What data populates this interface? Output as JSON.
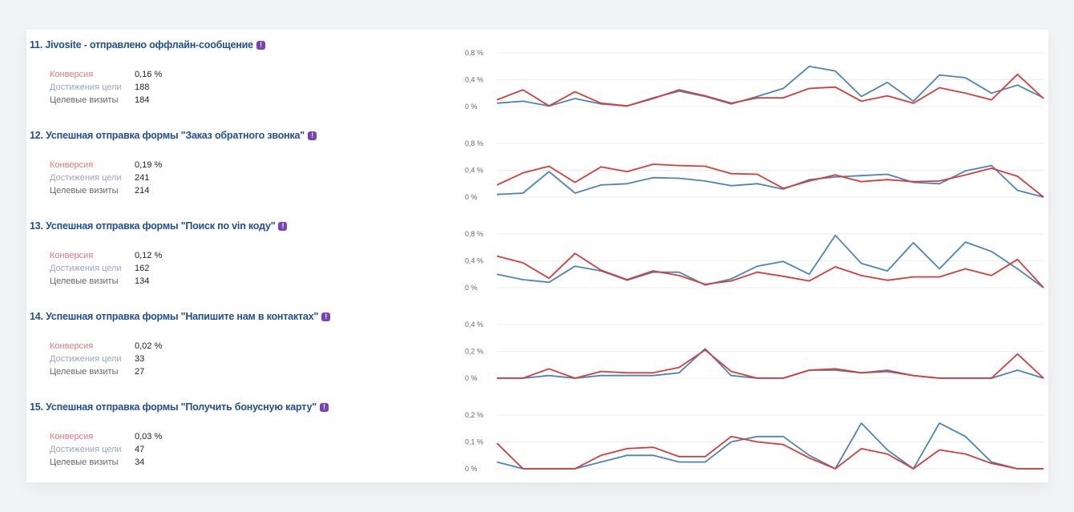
{
  "colors": {
    "conversion": "#d93b3b",
    "reaches": "#4a86b5",
    "title": "#1f4e94",
    "badge": "#7b3fb8"
  },
  "labels": {
    "conversion": "Конверсия",
    "reaches": "Достижения цели",
    "visits": "Целевые визиты"
  },
  "goals": [
    {
      "number": "11.",
      "title": "Jivosite - отправлено оффлайн-сообщение",
      "badge": "!",
      "conversion": "0,16 %",
      "reaches": "188",
      "visits": "184",
      "chart_data": {
        "type": "line",
        "y_ticks": [
          "0,8 %",
          "0,4 %",
          "0 %"
        ],
        "ymax": 0.8,
        "series": [
          {
            "color": "red",
            "values": [
              0.1,
              0.25,
              0.01,
              0.22,
              0.05,
              0.01,
              0.12,
              0.25,
              0.16,
              0.05,
              0.13,
              0.13,
              0.27,
              0.29,
              0.08,
              0.16,
              0.05,
              0.28,
              0.2,
              0.1,
              0.48,
              0.12
            ]
          },
          {
            "color": "blue",
            "values": [
              0.05,
              0.08,
              0.01,
              0.12,
              0.04,
              0.01,
              0.13,
              0.23,
              0.15,
              0.04,
              0.15,
              0.27,
              0.6,
              0.53,
              0.15,
              0.36,
              0.08,
              0.47,
              0.43,
              0.2,
              0.32,
              0.13
            ]
          }
        ]
      }
    },
    {
      "number": "12.",
      "title": "Успешная отправка формы \"Заказ обратного звонка\"",
      "badge": "!",
      "conversion": "0,19 %",
      "reaches": "241",
      "visits": "214",
      "chart_data": {
        "type": "line",
        "y_ticks": [
          "0,8 %",
          "0,4 %",
          "0 %"
        ],
        "ymax": 0.8,
        "series": [
          {
            "color": "red",
            "values": [
              0.18,
              0.36,
              0.46,
              0.22,
              0.45,
              0.38,
              0.49,
              0.47,
              0.46,
              0.35,
              0.34,
              0.13,
              0.24,
              0.33,
              0.23,
              0.26,
              0.23,
              0.24,
              0.33,
              0.43,
              0.31,
              0.0
            ]
          },
          {
            "color": "blue",
            "values": [
              0.04,
              0.06,
              0.38,
              0.06,
              0.18,
              0.2,
              0.29,
              0.28,
              0.24,
              0.17,
              0.2,
              0.12,
              0.26,
              0.3,
              0.32,
              0.34,
              0.22,
              0.2,
              0.39,
              0.47,
              0.1,
              0.0
            ]
          }
        ]
      }
    },
    {
      "number": "13.",
      "title": "Успешная отправка формы \"Поиск по vin коду\"",
      "badge": "!",
      "conversion": "0,12 %",
      "reaches": "162",
      "visits": "134",
      "chart_data": {
        "type": "line",
        "y_ticks": [
          "0,8 %",
          "0,4 %",
          "0 %"
        ],
        "ymax": 0.8,
        "series": [
          {
            "color": "red",
            "values": [
              0.47,
              0.37,
              0.14,
              0.51,
              0.26,
              0.12,
              0.25,
              0.18,
              0.05,
              0.1,
              0.23,
              0.17,
              0.1,
              0.31,
              0.18,
              0.11,
              0.16,
              0.16,
              0.28,
              0.18,
              0.42,
              0.0
            ]
          },
          {
            "color": "blue",
            "values": [
              0.2,
              0.12,
              0.08,
              0.32,
              0.25,
              0.11,
              0.23,
              0.23,
              0.04,
              0.13,
              0.32,
              0.39,
              0.2,
              0.78,
              0.36,
              0.25,
              0.67,
              0.28,
              0.68,
              0.54,
              0.28,
              0.0
            ]
          }
        ]
      }
    },
    {
      "number": "14.",
      "title": "Успешная отправка формы \"Напишите нам в контактах\"",
      "badge": "!",
      "conversion": "0,02 %",
      "reaches": "33",
      "visits": "27",
      "chart_data": {
        "type": "line",
        "y_ticks": [
          "0,4 %",
          "0,2 %",
          "0 %"
        ],
        "ymax": 0.4,
        "series": [
          {
            "color": "red",
            "values": [
              0.0,
              0.0,
              0.07,
              0.0,
              0.05,
              0.04,
              0.04,
              0.08,
              0.21,
              0.05,
              0.0,
              0.0,
              0.06,
              0.07,
              0.04,
              0.05,
              0.02,
              0.0,
              0.0,
              0.0,
              0.18,
              0.0
            ]
          },
          {
            "color": "blue",
            "values": [
              0.0,
              0.0,
              0.02,
              0.0,
              0.02,
              0.02,
              0.02,
              0.04,
              0.22,
              0.02,
              0.0,
              0.0,
              0.06,
              0.06,
              0.04,
              0.06,
              0.02,
              0.0,
              0.0,
              0.0,
              0.06,
              0.0
            ]
          }
        ]
      }
    },
    {
      "number": "15.",
      "title": "Успешная отправка формы \"Получить бонусную карту\"",
      "badge": "!",
      "conversion": "0,03 %",
      "reaches": "47",
      "visits": "34",
      "chart_data": {
        "type": "line",
        "y_ticks": [
          "0,2 %",
          "0,1 %",
          "0 %"
        ],
        "ymax": 0.2,
        "series": [
          {
            "color": "red",
            "values": [
              0.095,
              0.0,
              0.0,
              0.0,
              0.05,
              0.075,
              0.08,
              0.045,
              0.045,
              0.12,
              0.1,
              0.09,
              0.04,
              0.0,
              0.075,
              0.055,
              0.0,
              0.07,
              0.055,
              0.02,
              0.0,
              0.0
            ]
          },
          {
            "color": "blue",
            "values": [
              0.025,
              0.0,
              0.0,
              0.0,
              0.025,
              0.05,
              0.05,
              0.025,
              0.025,
              0.1,
              0.12,
              0.12,
              0.05,
              0.0,
              0.17,
              0.07,
              0.0,
              0.17,
              0.12,
              0.025,
              0.0,
              0.0
            ]
          }
        ]
      }
    }
  ]
}
